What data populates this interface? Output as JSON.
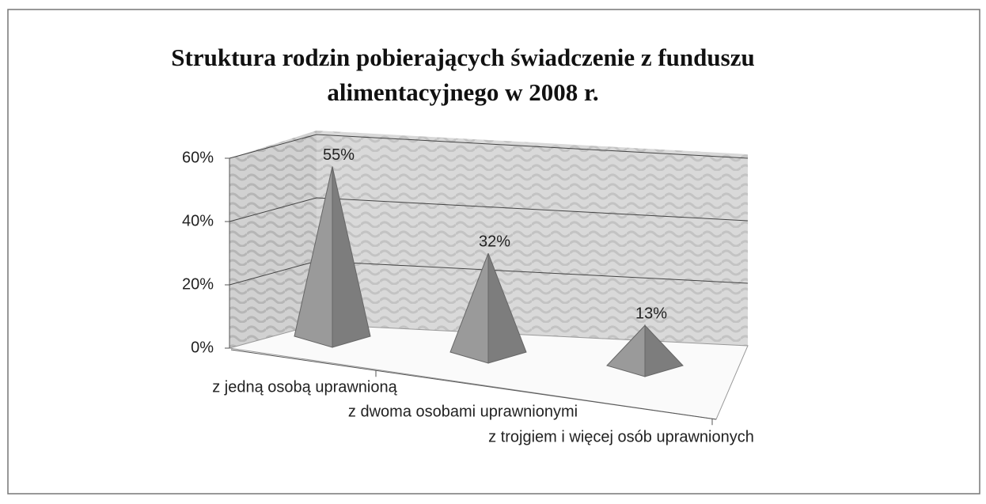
{
  "chart_data": {
    "type": "pyramid",
    "title": "Struktura rodzin pobierających świadczenie z funduszu alimentacyjnego w 2008 r.",
    "categories": [
      "z jedną osobą uprawnioną",
      "z dwoma osobami uprawnionymi",
      "z trojgiem i więcej osób uprawnionych"
    ],
    "values": [
      55,
      32,
      13
    ],
    "value_labels": [
      "55%",
      "32%",
      "13%"
    ],
    "color": "#9a9a9a",
    "ylim": [
      0,
      60
    ],
    "yticks": [
      {
        "value": 0,
        "label": "0%"
      },
      {
        "value": 20,
        "label": "20%"
      },
      {
        "value": 40,
        "label": "40%"
      },
      {
        "value": 60,
        "label": "60%"
      }
    ],
    "grid": true
  }
}
